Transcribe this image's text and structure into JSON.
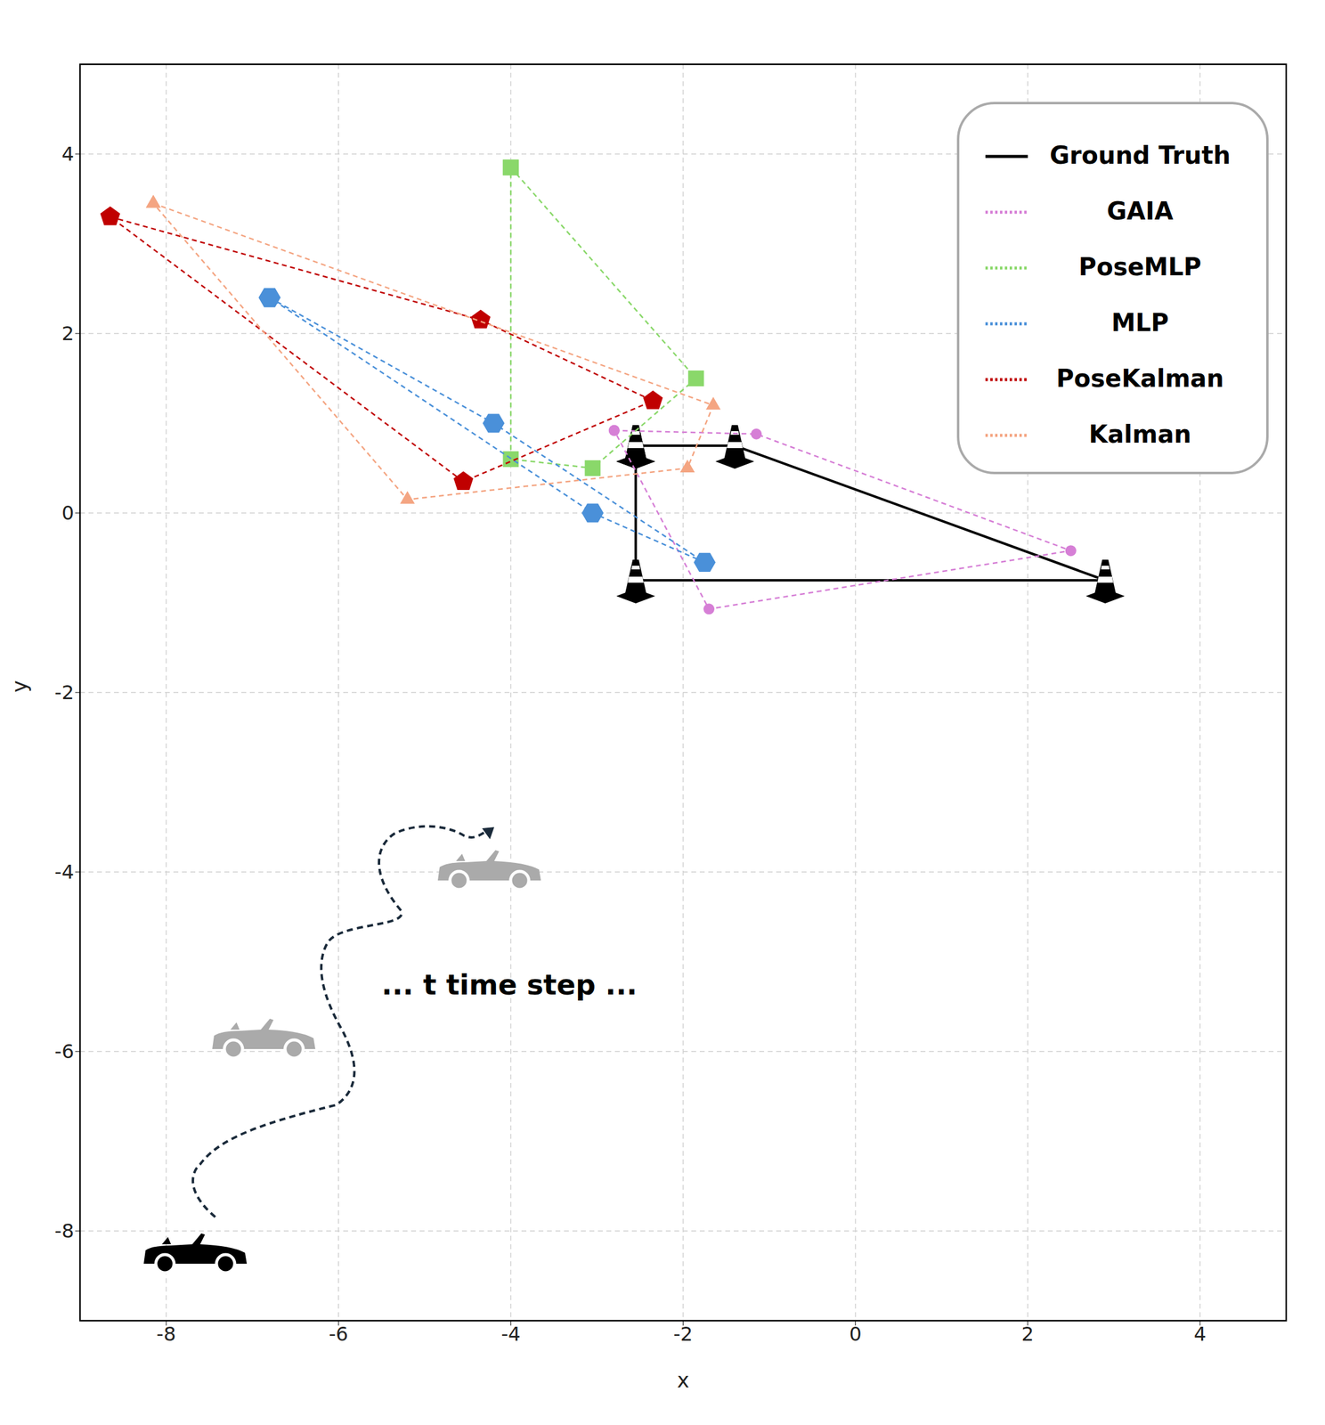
{
  "chart_data": {
    "type": "scatter",
    "x_label": "x",
    "y_label": "y",
    "xlim": [
      -9,
      5
    ],
    "ylim": [
      -9,
      5
    ],
    "xticks": [
      -8,
      -6,
      -4,
      -2,
      0,
      2,
      4
    ],
    "yticks": [
      -8,
      -6,
      -4,
      -2,
      0,
      2,
      4
    ],
    "grid": true,
    "legend": "upper right",
    "annotations": [
      "... t time step ..."
    ],
    "series": [
      {
        "name": "Ground Truth",
        "color": "#000000",
        "marker": "cone",
        "line_style": "solid",
        "x": [
          -2.55,
          -1.4,
          2.9,
          -2.55
        ],
        "y": [
          0.75,
          0.75,
          -0.75,
          -0.75
        ]
      },
      {
        "name": "GAIA",
        "color": "#d67fd6",
        "marker": "circle",
        "line_style": "dashed",
        "x": [
          -2.8,
          -1.15,
          2.5,
          -1.7
        ],
        "y": [
          0.92,
          0.88,
          -0.42,
          -1.07
        ]
      },
      {
        "name": "PoseMLP",
        "color": "#8ad86a",
        "marker": "square",
        "line_style": "dashed",
        "x": [
          -4.0,
          -1.85,
          -3.05,
          -4.0
        ],
        "y": [
          3.85,
          1.5,
          0.5,
          0.6
        ]
      },
      {
        "name": "MLP",
        "color": "#4a90d9",
        "marker": "hexagon",
        "line_style": "dashed",
        "x": [
          -6.8,
          -4.2,
          -1.75,
          -3.05
        ],
        "y": [
          2.4,
          1.0,
          -0.55,
          0.0
        ]
      },
      {
        "name": "PoseKalman",
        "color": "#c00000",
        "marker": "pentagon",
        "line_style": "dashed",
        "x": [
          -8.65,
          -4.35,
          -2.35,
          -4.55
        ],
        "y": [
          3.3,
          2.15,
          1.25,
          0.35
        ]
      },
      {
        "name": "Kalman",
        "color": "#f4a582",
        "marker": "triangle",
        "line_style": "dashed",
        "x": [
          -8.15,
          -1.65,
          -1.95,
          -5.2
        ],
        "y": [
          3.45,
          1.2,
          0.5,
          0.15
        ]
      }
    ]
  }
}
